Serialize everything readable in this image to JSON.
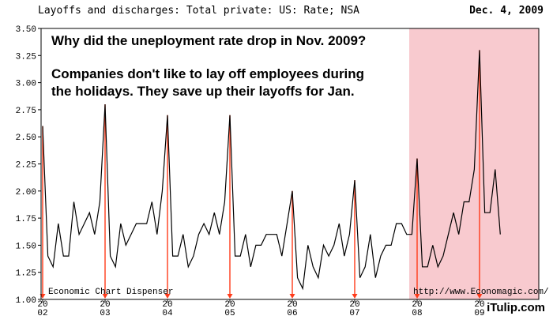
{
  "header": {
    "title": "Layoffs and discharges: Total private: US: Rate; NSA",
    "date": "Dec. 4, 2009"
  },
  "annotations": {
    "question": "Why did the uneployment rate drop in Nov. 2009?",
    "answer_line1": "Companies don't like to lay off employees during",
    "answer_line2": "the holidays. They save up their layoffs for Jan."
  },
  "footer": {
    "left": "Economic Chart Dispenser",
    "right": "http://www.Economagic.com/",
    "brand": "iTulip.com"
  },
  "colors": {
    "line": "#000000",
    "marker": "#ff3b1a",
    "recession_shade": "#f5b8bf"
  },
  "chart_data": {
    "type": "line",
    "title": "Layoffs and discharges: Total private: US: Rate; NSA",
    "ylim": [
      1.0,
      3.5
    ],
    "yticks": [
      "3.50",
      "3.25",
      "3.00",
      "2.75",
      "2.50",
      "2.25",
      "2.00",
      "1.75",
      "1.50",
      "1.25",
      "1.00"
    ],
    "xticks": [
      {
        "top": "20",
        "bottom": "02"
      },
      {
        "top": "20",
        "bottom": "03"
      },
      {
        "top": "20",
        "bottom": "04"
      },
      {
        "top": "20",
        "bottom": "05"
      },
      {
        "top": "20",
        "bottom": "06"
      },
      {
        "top": "20",
        "bottom": "07"
      },
      {
        "top": "20",
        "bottom": "08"
      },
      {
        "top": "20",
        "bottom": "09"
      }
    ],
    "x_start": "2002-01",
    "frequency": "monthly",
    "shaded_period": {
      "start": "2008-01",
      "end": "2009-10"
    },
    "january_markers": [
      "2002-01",
      "2003-01",
      "2004-01",
      "2005-01",
      "2006-01",
      "2007-01",
      "2008-01",
      "2009-01"
    ],
    "series": [
      {
        "values": [
          2.6,
          1.4,
          1.3,
          1.7,
          1.4,
          1.4,
          1.9,
          1.6,
          1.7,
          1.8,
          1.6,
          1.9,
          2.8,
          1.4,
          1.3,
          1.7,
          1.5,
          1.6,
          1.7,
          1.7,
          1.7,
          1.9,
          1.6,
          2.0,
          2.7,
          1.4,
          1.4,
          1.6,
          1.3,
          1.4,
          1.6,
          1.7,
          1.6,
          1.8,
          1.6,
          1.9,
          2.7,
          1.4,
          1.4,
          1.6,
          1.3,
          1.5,
          1.5,
          1.6,
          1.6,
          1.6,
          1.4,
          1.7,
          2.0,
          1.2,
          1.1,
          1.5,
          1.3,
          1.2,
          1.5,
          1.4,
          1.5,
          1.7,
          1.4,
          1.6,
          2.1,
          1.2,
          1.3,
          1.6,
          1.2,
          1.4,
          1.5,
          1.5,
          1.7,
          1.7,
          1.6,
          1.6,
          2.3,
          1.3,
          1.3,
          1.5,
          1.3,
          1.4,
          1.6,
          1.8,
          1.6,
          1.9,
          1.9,
          2.2,
          3.3,
          1.8,
          1.8,
          2.2,
          1.6
        ]
      }
    ]
  }
}
